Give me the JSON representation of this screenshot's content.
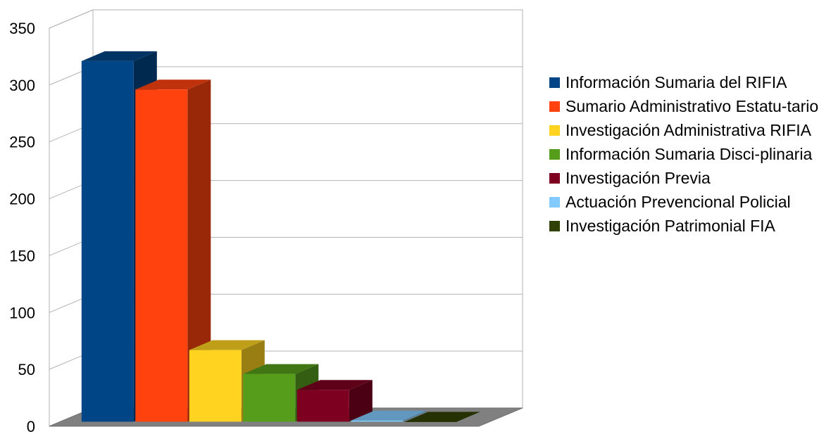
{
  "chart_data": {
    "type": "bar",
    "title": "",
    "xlabel": "",
    "ylabel": "",
    "ylim": [
      0,
      350
    ],
    "yticks": [
      0,
      50,
      100,
      150,
      200,
      250,
      300,
      350
    ],
    "grid": true,
    "legend_position": "right",
    "three_d": true,
    "series": [
      {
        "name": "Información Sumaria del RIFIA",
        "value": 317,
        "color": "#004586"
      },
      {
        "name": "Sumario Administrativo Estatutario",
        "value": 292,
        "color": "#ff420e"
      },
      {
        "name": "Investigación Administrativa RIFIA",
        "value": 63,
        "color": "#ffd320"
      },
      {
        "name": "Información Sumaria Disciplinaria",
        "value": 42,
        "color": "#579d1c"
      },
      {
        "name": "Investigación Previa",
        "value": 28,
        "color": "#7e0021"
      },
      {
        "name": "Actuación Prevencional Policial",
        "value": 1,
        "color": "#83caff"
      },
      {
        "name": "Investigación Patrimonial FIA",
        "value": 0,
        "color": "#314004"
      }
    ]
  },
  "legend": {
    "items": [
      {
        "label": "Información Sumaria del RIFIA"
      },
      {
        "label": "Sumario Administrativo Estatu-tario"
      },
      {
        "label": "Investigación Administrativa RIFIA"
      },
      {
        "label": "Información Sumaria Disci-plinaria"
      },
      {
        "label": "Investigación Previa"
      },
      {
        "label": "Actuación Prevencional Policial"
      },
      {
        "label": "Investigación Patrimonial FIA"
      }
    ]
  }
}
